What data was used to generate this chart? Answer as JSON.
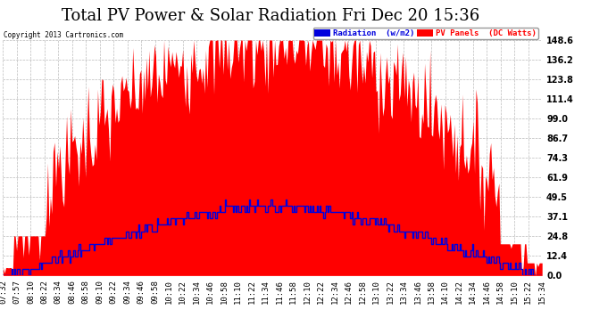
{
  "title": "Total PV Power & Solar Radiation Fri Dec 20 15:36",
  "copyright": "Copyright 2013 Cartronics.com",
  "legend_radiation": "Radiation  (w/m2)",
  "legend_pv": "PV Panels  (DC Watts)",
  "ylabel_right_values": [
    0.0,
    12.4,
    24.8,
    37.1,
    49.5,
    61.9,
    74.3,
    86.7,
    99.0,
    111.4,
    123.8,
    136.2,
    148.6
  ],
  "ymax": 148.6,
  "ymin": 0.0,
  "pv_color": "#FF0000",
  "radiation_color": "#0000DD",
  "background_color": "#FFFFFF",
  "plot_bg_color": "#FFFFFF",
  "grid_color": "#BBBBBB",
  "title_fontsize": 13,
  "tick_fontsize": 6.5,
  "x_tick_labels": [
    "07:32",
    "07:57",
    "08:10",
    "08:22",
    "08:34",
    "08:46",
    "08:58",
    "09:10",
    "09:22",
    "09:34",
    "09:46",
    "09:58",
    "10:10",
    "10:22",
    "10:34",
    "10:46",
    "10:58",
    "11:10",
    "11:22",
    "11:34",
    "11:46",
    "11:58",
    "12:10",
    "12:22",
    "12:34",
    "12:46",
    "12:58",
    "13:10",
    "13:22",
    "13:34",
    "13:46",
    "13:58",
    "14:10",
    "14:22",
    "14:34",
    "14:46",
    "14:58",
    "15:10",
    "15:22",
    "15:34"
  ]
}
